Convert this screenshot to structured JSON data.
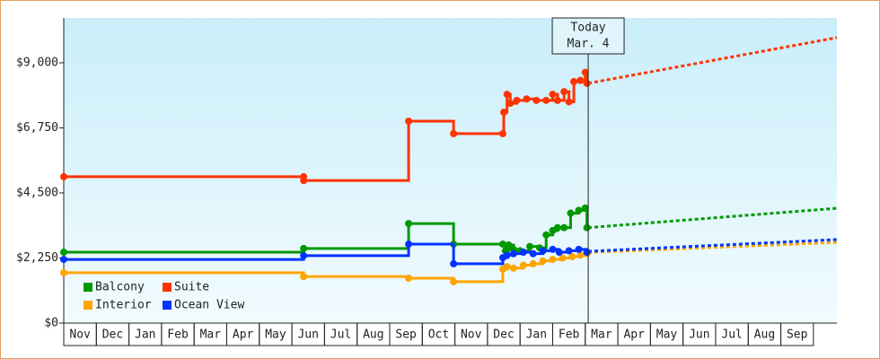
{
  "chart_data": {
    "type": "line",
    "step": true,
    "xlim": [
      0,
      23.72
    ],
    "ylim": [
      0,
      10550
    ],
    "xticks": [
      {
        "value": 0.5,
        "label": "Nov"
      },
      {
        "value": 1.5,
        "label": "Dec"
      },
      {
        "value": 2.5,
        "label": "Jan"
      },
      {
        "value": 3.5,
        "label": "Feb"
      },
      {
        "value": 4.5,
        "label": "Mar"
      },
      {
        "value": 5.5,
        "label": "Apr"
      },
      {
        "value": 6.5,
        "label": "May"
      },
      {
        "value": 7.5,
        "label": "Jun"
      },
      {
        "value": 8.5,
        "label": "Jul"
      },
      {
        "value": 9.5,
        "label": "Aug"
      },
      {
        "value": 10.5,
        "label": "Sep"
      },
      {
        "value": 11.5,
        "label": "Oct"
      },
      {
        "value": 12.5,
        "label": "Nov"
      },
      {
        "value": 13.5,
        "label": "Dec"
      },
      {
        "value": 14.5,
        "label": "Jan"
      },
      {
        "value": 15.5,
        "label": "Feb"
      },
      {
        "value": 16.5,
        "label": "Mar"
      },
      {
        "value": 17.5,
        "label": "Apr"
      },
      {
        "value": 18.5,
        "label": "May"
      },
      {
        "value": 19.5,
        "label": "Jun"
      },
      {
        "value": 20.5,
        "label": "Jul"
      },
      {
        "value": 21.5,
        "label": "Aug"
      },
      {
        "value": 22.5,
        "label": "Sep"
      }
    ],
    "yticks": [
      {
        "value": 0,
        "label": "$0"
      },
      {
        "value": 2250,
        "label": "$2,250"
      },
      {
        "value": 4500,
        "label": "$4,500"
      },
      {
        "value": 6750,
        "label": "$6,750"
      },
      {
        "value": 9000,
        "label": "$9,000"
      }
    ],
    "annotation": {
      "x": 16.09,
      "lines": [
        "Today",
        "Mar. 4"
      ]
    },
    "legend": "lower left",
    "series": [
      {
        "name": "Balcony",
        "color": "#009900",
        "x": [
          0,
          7.36,
          10.58,
          11.96,
          13.47,
          13.55,
          13.65,
          13.8,
          14.0,
          14.3,
          14.6,
          14.8,
          15.0,
          15.15,
          15.35,
          15.55,
          15.8,
          16.0,
          16.05
        ],
        "values": [
          2450,
          2580,
          3440,
          2730,
          2730,
          2500,
          2700,
          2550,
          2500,
          2650,
          2600,
          3050,
          3200,
          3300,
          3300,
          3800,
          3900,
          3980,
          3300
        ],
        "forecast": {
          "x": [
            16.09,
            23.72
          ],
          "values": [
            3300,
            3970
          ]
        }
      },
      {
        "name": "Suite",
        "color": "#ff3300",
        "x": [
          0,
          7.36,
          7.36,
          10.58,
          11.96,
          13.47,
          13.5,
          13.6,
          13.7,
          13.9,
          14.2,
          14.5,
          14.8,
          15.0,
          15.15,
          15.35,
          15.5,
          15.65,
          15.85,
          16.0,
          16.05
        ],
        "values": [
          5060,
          5060,
          4930,
          6980,
          6550,
          6550,
          7290,
          7910,
          7600,
          7700,
          7750,
          7700,
          7700,
          7910,
          7700,
          8000,
          7650,
          8350,
          8390,
          8670,
          8290
        ],
        "forecast": {
          "x": [
            16.09,
            23.72
          ],
          "values": [
            8290,
            9870
          ]
        }
      },
      {
        "name": "Interior",
        "color": "#ffa500",
        "x": [
          0,
          7.36,
          10.58,
          11.96,
          13.47,
          13.6,
          13.8,
          14.1,
          14.4,
          14.7,
          15.0,
          15.3,
          15.6,
          15.85,
          16.05
        ],
        "values": [
          1740,
          1610,
          1550,
          1430,
          1860,
          1950,
          1900,
          2000,
          2050,
          2150,
          2200,
          2250,
          2300,
          2350,
          2400
        ],
        "forecast": {
          "x": [
            16.09,
            23.72
          ],
          "values": [
            2440,
            2790
          ]
        }
      },
      {
        "name": "Ocean View",
        "color": "#0033ff",
        "x": [
          0,
          7.36,
          10.58,
          11.96,
          13.47,
          13.6,
          13.8,
          14.1,
          14.4,
          14.7,
          15.0,
          15.2,
          15.5,
          15.8,
          16.05
        ],
        "values": [
          2200,
          2330,
          2730,
          2050,
          2260,
          2350,
          2400,
          2450,
          2400,
          2500,
          2550,
          2450,
          2500,
          2550,
          2450
        ],
        "forecast": {
          "x": [
            16.09,
            23.72
          ],
          "values": [
            2480,
            2890
          ]
        }
      }
    ]
  }
}
